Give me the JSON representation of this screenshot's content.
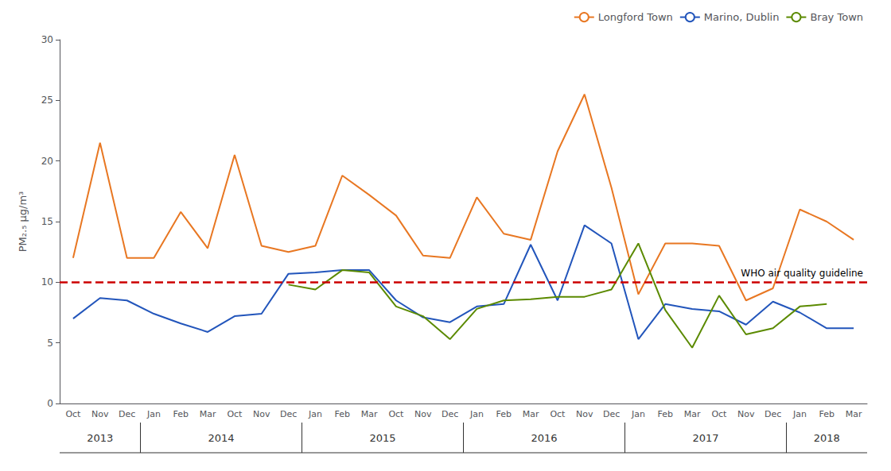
{
  "chart_data": {
    "type": "line",
    "ylabel": "PM₂.₅ μg/m³",
    "categories": [
      "Oct",
      "Nov",
      "Dec",
      "Jan",
      "Feb",
      "Mar",
      "Oct",
      "Nov",
      "Dec",
      "Jan",
      "Feb",
      "Mar",
      "Oct",
      "Nov",
      "Dec",
      "Jan",
      "Feb",
      "Mar",
      "Oct",
      "Nov",
      "Dec",
      "Jan",
      "Feb",
      "Mar",
      "Oct",
      "Nov",
      "Dec",
      "Jan",
      "Feb",
      "Mar"
    ],
    "x_groups": [
      {
        "label": "2013",
        "span": 3
      },
      {
        "label": "2014",
        "span": 6
      },
      {
        "label": "2015",
        "span": 6
      },
      {
        "label": "2016",
        "span": 6
      },
      {
        "label": "2017",
        "span": 6
      },
      {
        "label": "2018",
        "span": 3
      }
    ],
    "series": [
      {
        "name": "Longford Town",
        "color": "#E87722",
        "values": [
          12.0,
          21.5,
          12.0,
          12.0,
          15.8,
          12.8,
          20.5,
          13.0,
          12.5,
          13.0,
          18.8,
          17.2,
          15.5,
          12.2,
          12.0,
          17.0,
          14.0,
          13.5,
          20.8,
          25.5,
          17.8,
          9.0,
          13.2,
          13.2,
          13.0,
          8.5,
          9.5,
          16.0,
          15.0,
          13.5
        ]
      },
      {
        "name": "Marino, Dublin",
        "color": "#2255BB",
        "values": [
          7.0,
          8.7,
          8.5,
          7.4,
          6.6,
          5.9,
          7.2,
          7.4,
          10.7,
          10.8,
          11.0,
          11.0,
          8.5,
          7.1,
          6.7,
          8.0,
          8.2,
          13.1,
          8.5,
          14.7,
          13.2,
          5.3,
          8.2,
          7.8,
          7.6,
          6.5,
          8.4,
          7.5,
          6.2,
          6.2
        ]
      },
      {
        "name": "Bray Town",
        "color": "#5B8A00",
        "values": [
          null,
          null,
          null,
          null,
          null,
          null,
          null,
          null,
          9.8,
          9.4,
          11.0,
          10.8,
          8.0,
          7.2,
          5.3,
          7.8,
          8.5,
          8.6,
          8.8,
          8.8,
          9.4,
          13.2,
          7.7,
          4.6,
          8.9,
          5.7,
          6.2,
          8.0,
          8.2,
          null
        ]
      }
    ],
    "annotations": [
      {
        "y": 10,
        "label": "WHO air quality guideline",
        "color": "#CC0000",
        "line_style": "dashed"
      }
    ],
    "ylim": [
      0,
      30
    ],
    "yticks": [
      0,
      5,
      10,
      15,
      20,
      25,
      30
    ],
    "grid": false,
    "legend": "upper right"
  }
}
